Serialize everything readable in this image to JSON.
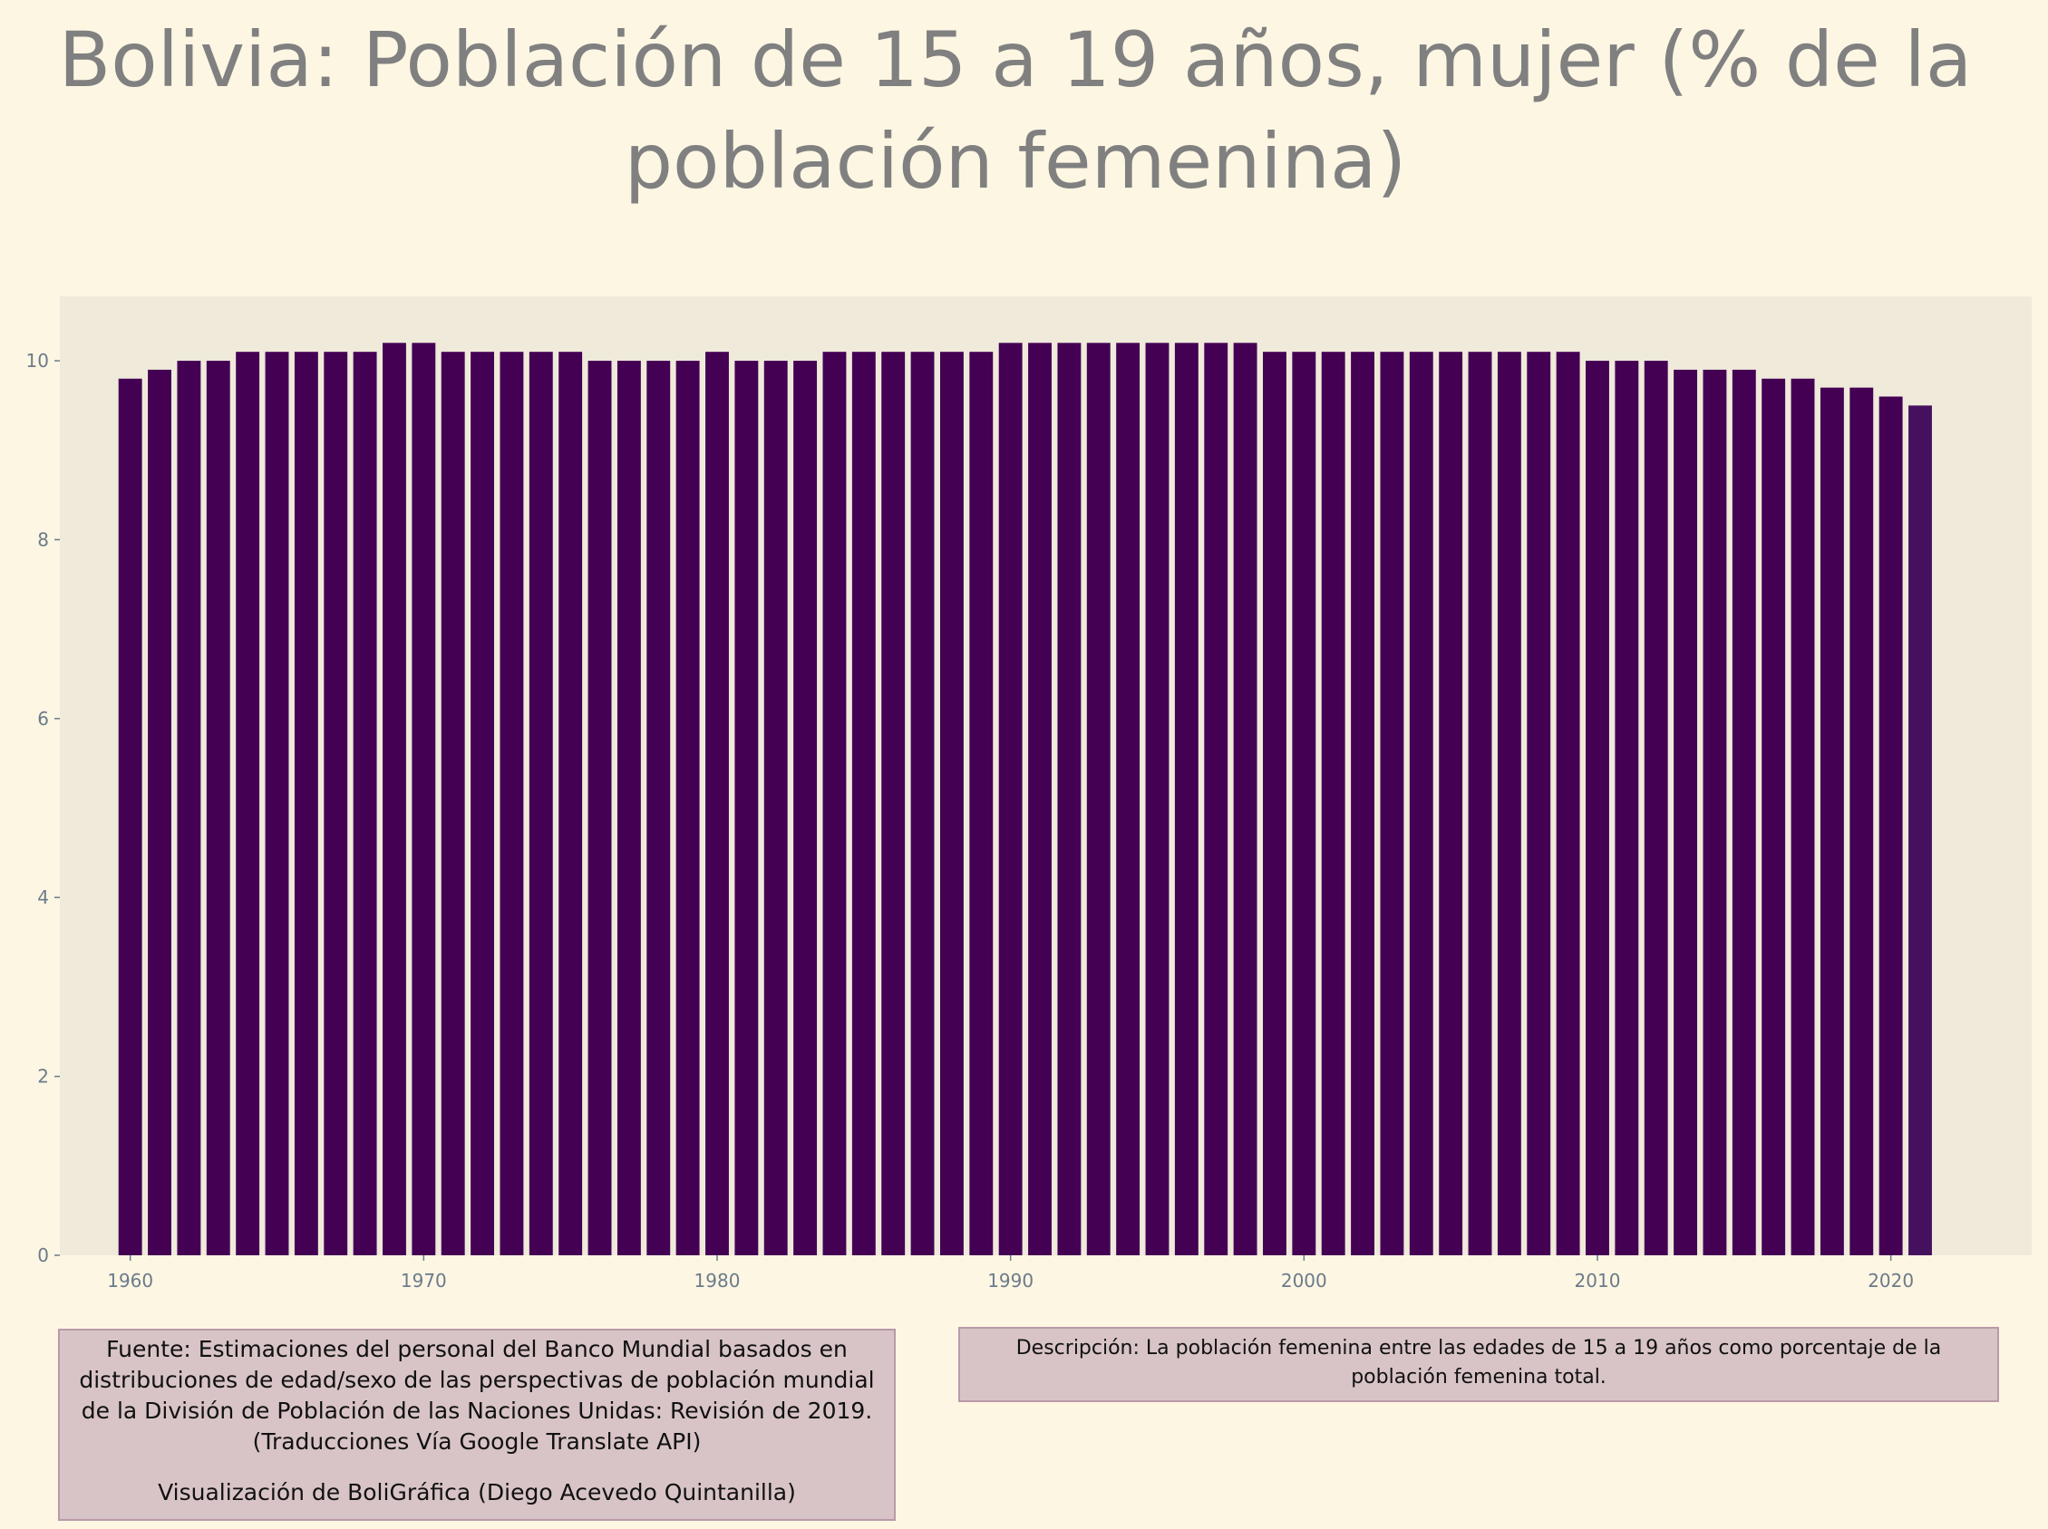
{
  "chart_data": {
    "type": "bar",
    "title": "Bolivia:  Población de 15 a 19 años, mujer (% de la población femenina)",
    "xlabel": "",
    "ylabel": "",
    "x": [
      1960,
      1961,
      1962,
      1963,
      1964,
      1965,
      1966,
      1967,
      1968,
      1969,
      1970,
      1971,
      1972,
      1973,
      1974,
      1975,
      1976,
      1977,
      1978,
      1979,
      1980,
      1981,
      1982,
      1983,
      1984,
      1985,
      1986,
      1987,
      1988,
      1989,
      1990,
      1991,
      1992,
      1993,
      1994,
      1995,
      1996,
      1997,
      1998,
      1999,
      2000,
      2001,
      2002,
      2003,
      2004,
      2005,
      2006,
      2007,
      2008,
      2009,
      2010,
      2011,
      2012,
      2013,
      2014,
      2015,
      2016,
      2017,
      2018,
      2019,
      2020,
      2021
    ],
    "values": [
      9.8,
      9.9,
      10.0,
      10.0,
      10.1,
      10.1,
      10.1,
      10.1,
      10.1,
      10.2,
      10.2,
      10.1,
      10.1,
      10.1,
      10.1,
      10.1,
      10.0,
      10.0,
      10.0,
      10.0,
      10.1,
      10.0,
      10.0,
      10.0,
      10.1,
      10.1,
      10.1,
      10.1,
      10.1,
      10.1,
      10.2,
      10.2,
      10.2,
      10.2,
      10.2,
      10.2,
      10.2,
      10.2,
      10.2,
      10.1,
      10.1,
      10.1,
      10.1,
      10.1,
      10.1,
      10.1,
      10.1,
      10.1,
      10.1,
      10.1,
      10.0,
      10.0,
      10.0,
      9.9,
      9.9,
      9.9,
      9.8,
      9.8,
      9.7,
      9.7,
      9.6,
      9.5
    ],
    "xticks": [
      "1960",
      "1970",
      "1980",
      "1990",
      "2000",
      "2010",
      "2020"
    ],
    "yticks": [
      "0",
      "2",
      "4",
      "6",
      "8",
      "10"
    ],
    "xlim": [
      1957.6,
      2024.8
    ],
    "ylim": [
      0,
      10.72
    ],
    "grid": false,
    "legend": "none",
    "colors": {
      "bar": "#440154",
      "bar_last": "#45115e",
      "plot_bg": "#f0eadb",
      "page_bg": "#fdf6e3"
    }
  },
  "footer": {
    "source": "Fuente: Estimaciones del personal del Banco Mundial basados en distribuciones de edad/sexo de las perspectivas de población mundial de la División de Población de las Naciones Unidas: Revisión de 2019. (Traducciones Vía Google Translate API)",
    "credit": "Visualización de BoliGráfica (Diego Acevedo Quintanilla)",
    "description": "Descripción: La población femenina entre las edades de 15 a 19 años como porcentaje de la población femenina total."
  }
}
